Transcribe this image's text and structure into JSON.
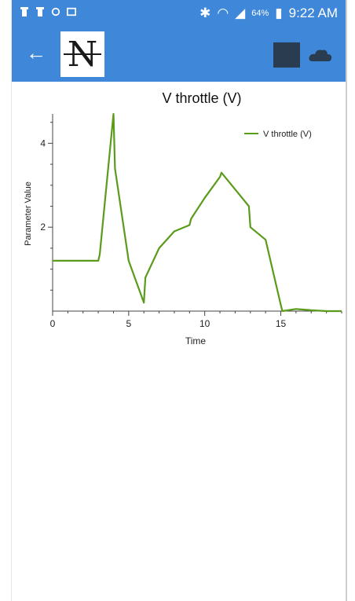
{
  "status_bar": {
    "battery": "64%",
    "time": "9:22 AM",
    "icons": [
      "notification-icon",
      "notification-icon",
      "shield-icon",
      "image-icon",
      "bluetooth-icon",
      "wifi-icon",
      "signal-icon",
      "battery-icon"
    ]
  },
  "app_bar": {
    "logo_text": "N",
    "back_icon": "back-arrow-icon",
    "actions": [
      "grid-icon",
      "cloud-icon"
    ]
  },
  "colors": {
    "primary": "#3f87d9",
    "series": "#5a9b1a"
  },
  "chart_data": {
    "type": "line",
    "title": "V throttle (V)",
    "xlabel": "Time",
    "ylabel": "Parameter Value",
    "xlim": [
      0,
      19
    ],
    "ylim": [
      0,
      4.7
    ],
    "xticks": [
      0,
      5,
      10,
      15
    ],
    "yticks": [
      2,
      4
    ],
    "legend": "top-right",
    "series": [
      {
        "name": "V throttle (V)",
        "x": [
          0,
          3,
          3.1,
          4,
          4.1,
          5,
          6,
          6.1,
          7,
          8,
          9,
          9.1,
          10,
          11,
          11.1,
          12,
          12.9,
          13,
          14,
          15,
          15.1,
          16,
          17,
          18,
          19
        ],
        "y": [
          1.2,
          1.2,
          1.35,
          4.7,
          3.4,
          1.2,
          0.2,
          0.8,
          1.5,
          1.9,
          2.05,
          2.2,
          2.7,
          3.2,
          3.3,
          2.9,
          2.5,
          2.0,
          1.7,
          0.15,
          0.0,
          0.05,
          0.02,
          0.0,
          0.0
        ]
      }
    ]
  }
}
